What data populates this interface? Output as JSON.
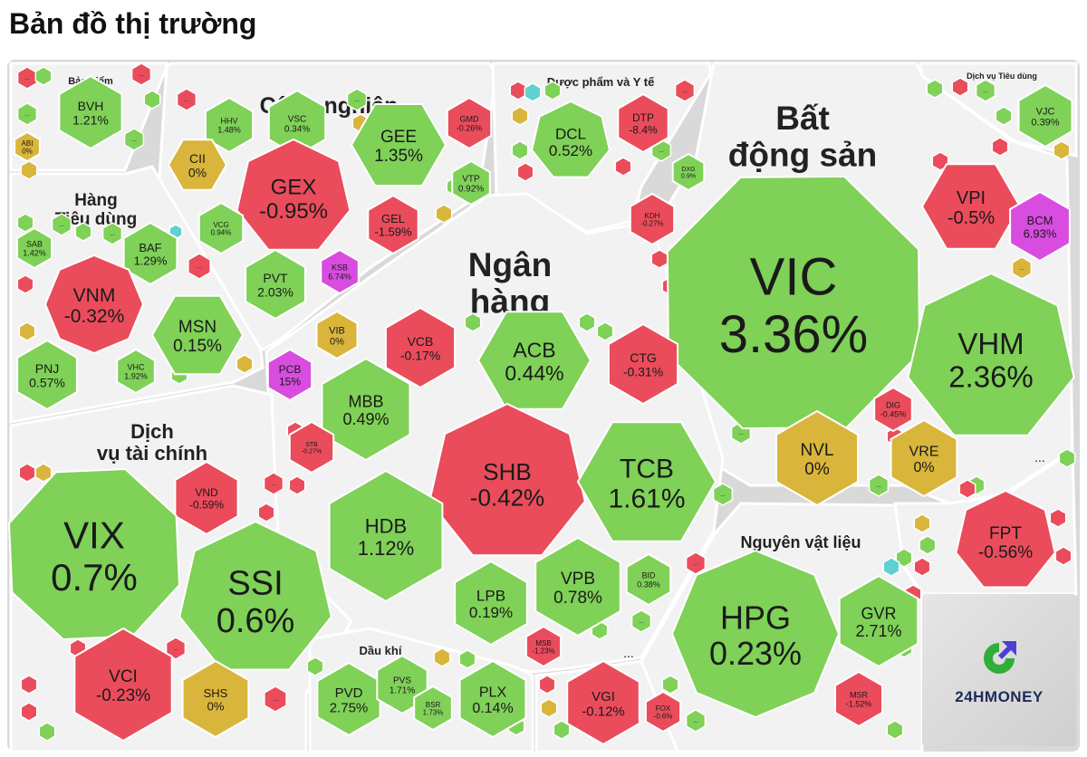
{
  "page_title": "Bản đồ thị trường",
  "brand": "24HMONEY",
  "colors": {
    "up": "#7fd157",
    "down": "#ea4c5b",
    "flat": "#d9b53b",
    "ceiling": "#d84de0",
    "floor": "#5fd1d1",
    "sector_bg": "#f2f2f2"
  },
  "chart_data": {
    "type": "treemap",
    "title": "Bản đồ thị trường",
    "sectors": [
      {
        "name": "Bảo hiểm",
        "stocks": [
          {
            "ticker": "BVH",
            "change": "1.21%"
          },
          {
            "ticker": "ABI",
            "change": "0%"
          }
        ]
      },
      {
        "name": "Công nghiệp",
        "stocks": [
          {
            "ticker": "HHV",
            "change": "1.48%"
          },
          {
            "ticker": "VSC",
            "change": "0.34%"
          },
          {
            "ticker": "GEE",
            "change": "1.35%"
          },
          {
            "ticker": "GMD",
            "change": "-0.26%"
          },
          {
            "ticker": "CII",
            "change": "0%"
          },
          {
            "ticker": "GEX",
            "change": "-0.95%"
          },
          {
            "ticker": "VTP",
            "change": "0.92%"
          },
          {
            "ticker": "GEL",
            "change": "-1.59%"
          },
          {
            "ticker": "VCG",
            "change": "0.94%"
          },
          {
            "ticker": "PVT",
            "change": "2.03%"
          },
          {
            "ticker": "KSB",
            "change": "6.74%"
          }
        ]
      },
      {
        "name": "Dược phẩm và Y tế",
        "stocks": [
          {
            "ticker": "DCL",
            "change": "0.52%"
          },
          {
            "ticker": "DTP",
            "change": "-8.4%"
          }
        ]
      },
      {
        "name": "Bất động sản",
        "stocks": [
          {
            "ticker": "DXG",
            "change": "0.9%"
          },
          {
            "ticker": "KDH",
            "change": "-0.27%"
          },
          {
            "ticker": "VIC",
            "change": "3.36%"
          },
          {
            "ticker": "VPI",
            "change": "-0.5%"
          },
          {
            "ticker": "BCM",
            "change": "6.93%"
          },
          {
            "ticker": "VHM",
            "change": "2.36%"
          },
          {
            "ticker": "DIG",
            "change": "-0.45%"
          },
          {
            "ticker": "NVL",
            "change": "0%"
          },
          {
            "ticker": "VRE",
            "change": "0%"
          }
        ]
      },
      {
        "name": "Dịch vụ Tiêu dùng",
        "stocks": [
          {
            "ticker": "VJC",
            "change": "0.39%"
          }
        ]
      },
      {
        "name": "Hàng Tiêu dùng",
        "stocks": [
          {
            "ticker": "SAB",
            "change": "1.42%"
          },
          {
            "ticker": "BAF",
            "change": "1.29%"
          },
          {
            "ticker": "VNM",
            "change": "-0.32%"
          },
          {
            "ticker": "MSN",
            "change": "0.15%"
          },
          {
            "ticker": "PNJ",
            "change": "0.57%"
          },
          {
            "ticker": "VHC",
            "change": "1.92%"
          }
        ]
      },
      {
        "name": "Ngân hàng",
        "stocks": [
          {
            "ticker": "VIB",
            "change": "0%"
          },
          {
            "ticker": "VCB",
            "change": "-0.17%"
          },
          {
            "ticker": "ACB",
            "change": "0.44%"
          },
          {
            "ticker": "CTG",
            "change": "-0.31%"
          },
          {
            "ticker": "PCB",
            "change": "15%"
          },
          {
            "ticker": "MBB",
            "change": "0.49%"
          },
          {
            "ticker": "STB",
            "change": "-0.27%"
          },
          {
            "ticker": "SHB",
            "change": "-0.42%"
          },
          {
            "ticker": "TCB",
            "change": "1.61%"
          },
          {
            "ticker": "HDB",
            "change": "1.12%"
          },
          {
            "ticker": "LPB",
            "change": "0.19%"
          },
          {
            "ticker": "VPB",
            "change": "0.78%"
          },
          {
            "ticker": "BID",
            "change": "0.38%"
          },
          {
            "ticker": "MSB",
            "change": "-1.23%"
          }
        ]
      },
      {
        "name": "Dịch vụ tài chính",
        "stocks": [
          {
            "ticker": "VND",
            "change": "-0.59%"
          },
          {
            "ticker": "VIX",
            "change": "0.7%"
          },
          {
            "ticker": "SSI",
            "change": "0.6%"
          },
          {
            "ticker": "VCI",
            "change": "-0.23%"
          },
          {
            "ticker": "SHS",
            "change": "0%"
          }
        ]
      },
      {
        "name": "Dầu khí",
        "stocks": [
          {
            "ticker": "PVD",
            "change": "2.75%"
          },
          {
            "ticker": "PVS",
            "change": "1.71%"
          },
          {
            "ticker": "BSR",
            "change": "1.73%"
          },
          {
            "ticker": "PLX",
            "change": "0.14%"
          }
        ]
      },
      {
        "name": "",
        "stocks": [
          {
            "ticker": "VGI",
            "change": "-0.12%"
          },
          {
            "ticker": "FOX",
            "change": "-0.6%"
          }
        ]
      },
      {
        "name": "",
        "stocks": [
          {
            "ticker": "FPT",
            "change": "-0.56%"
          }
        ]
      },
      {
        "name": "Nguyên vật liệu",
        "stocks": [
          {
            "ticker": "HPG",
            "change": "0.23%"
          },
          {
            "ticker": "GVR",
            "change": "2.71%"
          },
          {
            "ticker": "MSR",
            "change": "-1.52%"
          }
        ]
      }
    ],
    "placeholder_label": "...",
    "legend": "none",
    "grid": false
  }
}
